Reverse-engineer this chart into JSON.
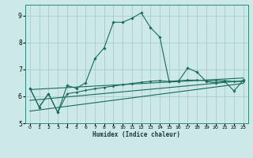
{
  "xlabel": "Humidex (Indice chaleur)",
  "background_color": "#cce8e8",
  "grid_color": "#aacccc",
  "line_color": "#1a6b5a",
  "xlim": [
    -0.5,
    23.5
  ],
  "ylim": [
    5.0,
    9.4
  ],
  "yticks": [
    5,
    6,
    7,
    8,
    9
  ],
  "xticks": [
    0,
    1,
    2,
    3,
    4,
    5,
    6,
    7,
    8,
    9,
    10,
    11,
    12,
    13,
    14,
    15,
    16,
    17,
    18,
    19,
    20,
    21,
    22,
    23
  ],
  "line1_x": [
    0,
    1,
    2,
    3,
    4,
    5,
    6,
    7,
    8,
    9,
    10,
    11,
    12,
    13,
    14,
    15,
    16,
    17,
    18,
    19,
    20,
    21,
    22,
    23
  ],
  "line1_y": [
    6.3,
    5.6,
    6.1,
    5.4,
    6.4,
    6.3,
    6.5,
    7.4,
    7.8,
    8.75,
    8.75,
    8.9,
    9.1,
    8.55,
    8.2,
    6.55,
    6.55,
    7.05,
    6.9,
    6.55,
    6.5,
    6.55,
    6.2,
    6.6
  ],
  "line2_x": [
    0,
    1,
    2,
    3,
    4,
    5,
    6,
    7,
    8,
    9,
    10,
    11,
    12,
    13,
    14,
    15,
    16,
    17,
    18,
    19,
    20,
    21,
    22,
    23
  ],
  "line2_y": [
    6.3,
    5.6,
    6.1,
    5.4,
    6.1,
    6.15,
    6.22,
    6.28,
    6.33,
    6.38,
    6.43,
    6.48,
    6.52,
    6.56,
    6.58,
    6.55,
    6.58,
    6.6,
    6.6,
    6.58,
    6.58,
    6.58,
    6.55,
    6.55
  ],
  "line3_x": [
    0,
    23
  ],
  "line3_y": [
    6.25,
    6.68
  ],
  "line4_x": [
    0,
    23
  ],
  "line4_y": [
    5.85,
    6.58
  ],
  "line5_x": [
    0,
    23
  ],
  "line5_y": [
    5.45,
    6.48
  ]
}
